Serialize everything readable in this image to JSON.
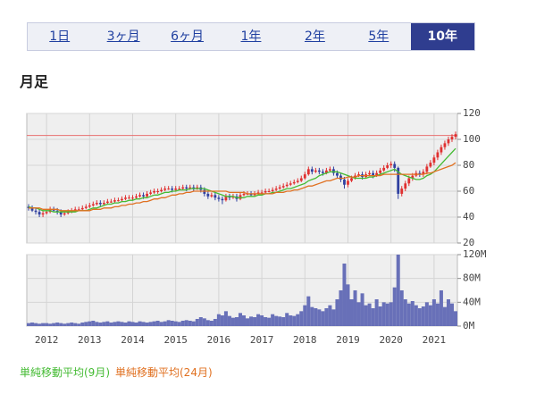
{
  "tabs": {
    "labels": [
      "1日",
      "3ヶ月",
      "6ヶ月",
      "1年",
      "2年",
      "5年",
      "10年"
    ],
    "active": 6
  },
  "heading": "月足",
  "chart_data": {
    "type": "candlestick",
    "categories": [
      null,
      null,
      null,
      null,
      null,
      "2012",
      null,
      null,
      null,
      null,
      null,
      null,
      null,
      null,
      null,
      null,
      null,
      "2013",
      null,
      null,
      null,
      null,
      null,
      null,
      null,
      null,
      null,
      null,
      null,
      "2014",
      null,
      null,
      null,
      null,
      null,
      null,
      null,
      null,
      null,
      null,
      null,
      "2015",
      null,
      null,
      null,
      null,
      null,
      null,
      null,
      null,
      null,
      null,
      null,
      "2016",
      null,
      null,
      null,
      null,
      null,
      null,
      null,
      null,
      null,
      null,
      null,
      "2017",
      null,
      null,
      null,
      null,
      null,
      null,
      null,
      null,
      null,
      null,
      null,
      "2018",
      null,
      null,
      null,
      null,
      null,
      null,
      null,
      null,
      null,
      null,
      null,
      "2019",
      null,
      null,
      null,
      null,
      null,
      null,
      null,
      null,
      null,
      null,
      null,
      "2020",
      null,
      null,
      null,
      null,
      null,
      null,
      null,
      null,
      null,
      null,
      null,
      "2021",
      null,
      null,
      null,
      null,
      null,
      null
    ],
    "ohlc": {
      "up_color": "#e03030",
      "down_color": "#3040a0",
      "open": [
        48,
        47,
        45,
        44,
        42,
        43,
        44,
        46,
        45,
        44,
        42,
        43,
        44,
        45,
        46,
        46,
        47,
        48,
        49,
        50,
        51,
        50,
        51,
        52,
        52,
        53,
        53,
        54,
        55,
        55,
        55,
        56,
        57,
        56,
        58,
        59,
        60,
        60,
        61,
        62,
        62,
        61,
        62,
        62,
        63,
        62,
        63,
        62,
        63,
        61,
        58,
        56,
        57,
        55,
        54,
        53,
        56,
        55,
        56,
        54,
        57,
        58,
        58,
        57,
        58,
        59,
        59,
        60,
        60,
        61,
        62,
        63,
        64,
        65,
        66,
        67,
        68,
        70,
        73,
        77,
        75,
        76,
        75,
        74,
        76,
        77,
        74,
        72,
        69,
        65,
        68,
        70,
        72,
        73,
        71,
        73,
        74,
        72,
        74,
        76,
        78,
        80,
        81,
        78,
        58,
        62,
        66,
        70,
        72,
        74,
        73,
        75,
        79,
        82,
        86,
        90,
        94,
        97,
        100,
        102
      ],
      "high": [
        50,
        49,
        47,
        46,
        45,
        46,
        48,
        48,
        47,
        46,
        45,
        46,
        47,
        48,
        48,
        49,
        50,
        51,
        52,
        53,
        53,
        53,
        54,
        54,
        55,
        55,
        56,
        57,
        57,
        57,
        58,
        59,
        59,
        60,
        61,
        62,
        62,
        63,
        64,
        64,
        64,
        64,
        64,
        65,
        65,
        65,
        65,
        65,
        65,
        63,
        60,
        59,
        59,
        57,
        56,
        58,
        58,
        58,
        58,
        59,
        60,
        60,
        60,
        60,
        61,
        61,
        62,
        62,
        63,
        64,
        65,
        66,
        67,
        68,
        69,
        70,
        72,
        75,
        79,
        79,
        78,
        78,
        77,
        78,
        79,
        79,
        76,
        74,
        71,
        70,
        72,
        74,
        75,
        75,
        75,
        76,
        76,
        76,
        78,
        80,
        82,
        83,
        83,
        79,
        64,
        68,
        72,
        74,
        76,
        76,
        77,
        81,
        84,
        88,
        92,
        96,
        99,
        102,
        104,
        106
      ],
      "low": [
        45,
        44,
        42,
        40,
        40,
        42,
        43,
        44,
        42,
        40,
        41,
        42,
        43,
        44,
        45,
        45,
        46,
        47,
        48,
        49,
        48,
        49,
        50,
        51,
        51,
        52,
        52,
        53,
        54,
        53,
        54,
        55,
        54,
        55,
        57,
        58,
        58,
        59,
        60,
        61,
        59,
        60,
        61,
        61,
        60,
        61,
        60,
        61,
        59,
        56,
        54,
        55,
        53,
        52,
        50,
        52,
        53,
        54,
        52,
        53,
        56,
        57,
        56,
        56,
        57,
        58,
        58,
        59,
        59,
        60,
        61,
        62,
        63,
        64,
        65,
        66,
        67,
        69,
        72,
        73,
        74,
        73,
        72,
        73,
        75,
        72,
        70,
        67,
        62,
        63,
        67,
        69,
        71,
        69,
        70,
        72,
        70,
        71,
        73,
        75,
        77,
        78,
        75,
        54,
        56,
        60,
        64,
        68,
        71,
        71,
        71,
        73,
        78,
        80,
        84,
        88,
        92,
        95,
        98,
        100
      ],
      "close": [
        47,
        45,
        44,
        42,
        43,
        44,
        46,
        45,
        44,
        42,
        43,
        44,
        45,
        46,
        46,
        47,
        48,
        49,
        50,
        51,
        50,
        51,
        52,
        52,
        53,
        53,
        54,
        55,
        55,
        55,
        56,
        57,
        56,
        58,
        59,
        60,
        60,
        61,
        62,
        62,
        61,
        62,
        62,
        63,
        62,
        63,
        62,
        63,
        61,
        58,
        56,
        57,
        55,
        54,
        53,
        56,
        55,
        56,
        54,
        57,
        58,
        58,
        57,
        58,
        59,
        59,
        60,
        60,
        61,
        62,
        63,
        64,
        65,
        66,
        67,
        68,
        70,
        73,
        77,
        75,
        76,
        75,
        74,
        76,
        77,
        74,
        72,
        69,
        65,
        68,
        70,
        72,
        73,
        71,
        73,
        74,
        72,
        74,
        76,
        78,
        80,
        81,
        78,
        58,
        62,
        66,
        70,
        72,
        74,
        73,
        75,
        79,
        82,
        86,
        90,
        94,
        97,
        100,
        102,
        104
      ]
    },
    "series": [
      {
        "name": "単純移動平均(9月)",
        "color": "#44bb33",
        "values": [
          48,
          47,
          47,
          46,
          45,
          45,
          45,
          44,
          44,
          44,
          44,
          44,
          44,
          44,
          45,
          45,
          45,
          46,
          47,
          47,
          48,
          49,
          50,
          50,
          51,
          51,
          52,
          52,
          53,
          53,
          54,
          54,
          55,
          55,
          56,
          57,
          57,
          58,
          59,
          59,
          60,
          60,
          61,
          61,
          61,
          62,
          62,
          62,
          62,
          62,
          61,
          60,
          59,
          58,
          57,
          56,
          56,
          56,
          55,
          55,
          55,
          56,
          56,
          56,
          57,
          57,
          58,
          58,
          59,
          59,
          60,
          61,
          62,
          62,
          63,
          64,
          65,
          66,
          68,
          69,
          70,
          72,
          73,
          74,
          75,
          75,
          75,
          74,
          73,
          72,
          71,
          70,
          70,
          70,
          70,
          71,
          71,
          72,
          73,
          74,
          75,
          76,
          77,
          75,
          73,
          72,
          71,
          70,
          69,
          69,
          70,
          72,
          73,
          75,
          78,
          81,
          84,
          87,
          90,
          93
        ]
      },
      {
        "name": "単純移動平均(24月)",
        "color": "#e07020",
        "values": [
          47,
          47,
          47,
          47,
          46,
          46,
          46,
          46,
          46,
          45,
          45,
          45,
          45,
          45,
          45,
          45,
          45,
          45,
          46,
          46,
          46,
          47,
          47,
          47,
          48,
          48,
          49,
          49,
          50,
          50,
          51,
          51,
          52,
          52,
          53,
          54,
          54,
          55,
          55,
          56,
          57,
          57,
          58,
          58,
          59,
          59,
          60,
          60,
          60,
          60,
          60,
          60,
          60,
          60,
          60,
          60,
          59,
          59,
          59,
          59,
          59,
          58,
          58,
          58,
          58,
          58,
          58,
          58,
          58,
          59,
          59,
          59,
          60,
          60,
          61,
          61,
          62,
          63,
          64,
          64,
          65,
          66,
          67,
          68,
          68,
          69,
          70,
          70,
          70,
          71,
          71,
          71,
          72,
          72,
          72,
          72,
          72,
          72,
          72,
          73,
          73,
          73,
          73,
          73,
          73,
          73,
          73,
          73,
          73,
          73,
          73,
          74,
          74,
          75,
          76,
          77,
          78,
          79,
          80,
          82
        ]
      }
    ],
    "reference_line": {
      "value": 103,
      "color": "#e87070"
    },
    "ylim": [
      20,
      120
    ],
    "yticks": [
      20,
      40,
      60,
      80,
      100,
      120
    ],
    "grid": true,
    "volume": {
      "color": "#6870b8",
      "values": [
        5,
        6,
        5,
        4,
        5,
        5,
        4,
        5,
        6,
        5,
        4,
        5,
        6,
        5,
        4,
        6,
        7,
        8,
        9,
        7,
        6,
        7,
        8,
        6,
        7,
        8,
        7,
        6,
        8,
        7,
        6,
        8,
        7,
        6,
        7,
        8,
        9,
        7,
        8,
        10,
        9,
        8,
        7,
        9,
        10,
        9,
        8,
        12,
        15,
        13,
        10,
        9,
        12,
        20,
        18,
        25,
        17,
        14,
        15,
        22,
        18,
        13,
        16,
        15,
        20,
        18,
        15,
        14,
        20,
        17,
        16,
        15,
        22,
        18,
        17,
        20,
        25,
        35,
        50,
        32,
        30,
        28,
        25,
        30,
        35,
        28,
        45,
        60,
        105,
        70,
        45,
        60,
        40,
        55,
        35,
        38,
        30,
        45,
        33,
        40,
        38,
        40,
        65,
        120,
        60,
        45,
        38,
        42,
        35,
        30,
        33,
        40,
        35,
        45,
        38,
        60,
        32,
        45,
        38,
        25
      ],
      "ylim": [
        0,
        120
      ],
      "yticks": [
        {
          "value": 0,
          "label": "0M"
        },
        {
          "value": 40,
          "label": "40M"
        },
        {
          "value": 80,
          "label": "80M"
        },
        {
          "value": 120,
          "label": "120M"
        }
      ]
    }
  }
}
